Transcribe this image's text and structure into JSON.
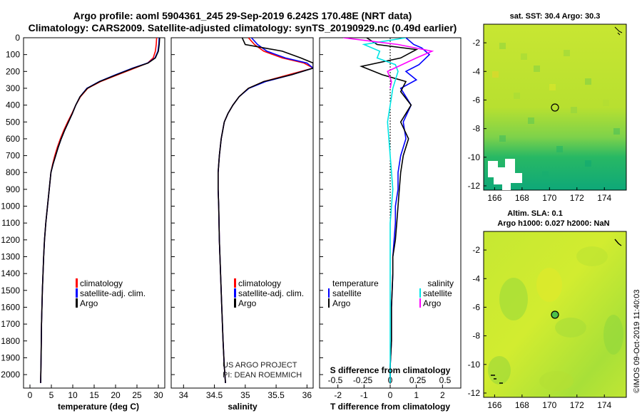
{
  "title_line1": "Argo profile: aoml 5904361_245 29-Sep-2019 6.242S 170.48E (NRT data)",
  "title_line2": "Climatology: CARS2009. Satellite-adjusted climatology: synTS_20190929.nc (0.49d earlier)",
  "colors": {
    "climatology": "#ff0000",
    "satellite": "#0000ff",
    "argo": "#000000",
    "sal_satellite": "#00e5e5",
    "sal_argo": "#ff00ff",
    "map_cross": "#000000"
  },
  "chart_data": [
    {
      "type": "line",
      "panel": "temperature",
      "xlabel": "temperature (deg C)",
      "ylabel": "",
      "xlim": [
        -1.5,
        31.5
      ],
      "ylim": [
        2080,
        0
      ],
      "xticks": [
        0,
        5,
        10,
        15,
        20,
        25,
        30
      ],
      "yticks": [
        0,
        100,
        200,
        300,
        400,
        500,
        600,
        700,
        800,
        900,
        1000,
        1100,
        1200,
        1300,
        1400,
        1500,
        1600,
        1700,
        1800,
        1900,
        2000
      ],
      "legend": [
        "climatology",
        "satellite-adj. clim.",
        "Argo"
      ],
      "series": [
        {
          "name": "climatology",
          "color": "climatology",
          "x": [
            29.6,
            29.5,
            29.3,
            28.8,
            27.5,
            24.5,
            20.5,
            16.5,
            13.5,
            11.8,
            10.7,
            9.8,
            8.8,
            7.9,
            7.1,
            6.4,
            5.8,
            5.3,
            4.9,
            4.5,
            4.1,
            3.7,
            3.4,
            3.2,
            2.9,
            2.7,
            2.6,
            2.5
          ],
          "y": [
            0,
            40,
            80,
            120,
            150,
            180,
            220,
            260,
            300,
            350,
            400,
            450,
            500,
            550,
            600,
            650,
            700,
            750,
            800,
            900,
            1000,
            1100,
            1200,
            1300,
            1500,
            1700,
            1900,
            2050
          ]
        },
        {
          "name": "satellite-adj. clim.",
          "color": "satellite",
          "x": [
            30.2,
            30.1,
            29.9,
            29.2,
            27.5,
            24.0,
            20.0,
            16.2,
            13.3,
            11.7,
            10.7,
            9.9,
            9.0,
            8.1,
            7.3,
            6.6,
            6.0,
            5.4,
            4.9,
            4.5,
            4.1,
            3.7,
            3.4,
            3.2,
            2.9,
            2.7,
            2.6,
            2.5
          ],
          "y": [
            0,
            40,
            80,
            120,
            150,
            180,
            220,
            260,
            300,
            350,
            400,
            450,
            500,
            550,
            600,
            650,
            700,
            750,
            800,
            900,
            1000,
            1100,
            1200,
            1300,
            1500,
            1700,
            1900,
            2050
          ]
        },
        {
          "name": "Argo",
          "color": "argo",
          "x": [
            30.3,
            30.2,
            30.0,
            29.3,
            27.6,
            24.2,
            20.2,
            16.3,
            13.4,
            11.7,
            10.7,
            9.9,
            9.0,
            8.1,
            7.3,
            6.6,
            6.0,
            5.4,
            4.9,
            4.5,
            4.1,
            3.7,
            3.4,
            3.2,
            2.9,
            2.7,
            2.6,
            2.5
          ],
          "y": [
            0,
            40,
            80,
            120,
            150,
            180,
            220,
            260,
            300,
            350,
            400,
            450,
            500,
            550,
            600,
            650,
            700,
            750,
            800,
            900,
            1000,
            1100,
            1200,
            1300,
            1500,
            1700,
            1900,
            2050
          ]
        }
      ]
    },
    {
      "type": "line",
      "panel": "salinity",
      "xlabel": "salinity",
      "xlim": [
        33.8,
        36.1
      ],
      "ylim": [
        2080,
        0
      ],
      "xticks": [
        34,
        34.5,
        35,
        35.5,
        36
      ],
      "legend": [
        "climatology",
        "satellite-adj. clim.",
        "Argo"
      ],
      "credits": [
        "US ARGO PROJECT",
        "PI: DEAN ROEMMICH"
      ],
      "series": [
        {
          "name": "climatology",
          "color": "climatology",
          "x": [
            35.05,
            35.15,
            35.3,
            35.6,
            35.95,
            36.1,
            35.7,
            35.3,
            35.05,
            34.9,
            34.8,
            34.72,
            34.66,
            34.61,
            34.58,
            34.56,
            34.56,
            34.57,
            34.58,
            34.6,
            34.62,
            34.64,
            34.66,
            34.68
          ],
          "y": [
            0,
            40,
            80,
            120,
            150,
            180,
            220,
            260,
            300,
            350,
            400,
            450,
            500,
            600,
            700,
            800,
            900,
            1000,
            1200,
            1400,
            1600,
            1800,
            1950,
            2050
          ]
        },
        {
          "name": "satellite-adj. clim.",
          "color": "satellite",
          "x": [
            35.1,
            35.2,
            35.35,
            35.65,
            36.0,
            36.1,
            35.75,
            35.33,
            35.06,
            34.9,
            34.8,
            34.72,
            34.66,
            34.61,
            34.58,
            34.56,
            34.56,
            34.57,
            34.58,
            34.6,
            34.62,
            34.64,
            34.66,
            34.68
          ],
          "y": [
            0,
            40,
            80,
            120,
            150,
            180,
            220,
            260,
            300,
            350,
            400,
            450,
            500,
            600,
            700,
            800,
            900,
            1000,
            1200,
            1400,
            1600,
            1800,
            1950,
            2050
          ]
        },
        {
          "name": "Argo",
          "color": "argo",
          "x": [
            34.95,
            35.0,
            35.6,
            35.9,
            36.1,
            36.1,
            35.75,
            35.3,
            35.05,
            34.9,
            34.8,
            34.72,
            34.66,
            34.61,
            34.58,
            34.56,
            34.56,
            34.57,
            34.58,
            34.6,
            34.62,
            34.64,
            34.66,
            34.68
          ],
          "y": [
            0,
            40,
            80,
            120,
            150,
            180,
            220,
            260,
            300,
            350,
            400,
            450,
            500,
            600,
            700,
            800,
            900,
            1000,
            1200,
            1400,
            1600,
            1800,
            1950,
            2050
          ]
        }
      ]
    },
    {
      "type": "line",
      "panel": "difference",
      "xlabel": "T difference from climatology",
      "xlabel2": "S difference from climatology",
      "xlim": [
        -2.7,
        2.7
      ],
      "ylim": [
        2080,
        0
      ],
      "xticks": [
        -2,
        -1,
        0,
        1,
        2
      ],
      "xticks2": [
        "-0.5",
        "-0.25",
        "0",
        "0.25",
        "0.5"
      ],
      "legend_t_title": "temperature",
      "legend_s_title": "salinity",
      "legend_t": [
        "satellite",
        "Argo"
      ],
      "legend_s": [
        "satellite",
        "Argo"
      ],
      "series": [
        {
          "name": "T satellite",
          "color": "satellite",
          "x": [
            0.6,
            0.9,
            1.2,
            1.5,
            1.1,
            0.6,
            1.0,
            0.4,
            0.8,
            0.5,
            0.6,
            0.4,
            0.3,
            0.3,
            0.2,
            0.2,
            0.15,
            0.1,
            0.1,
            0.05,
            0.05,
            0.0,
            0.0
          ],
          "y": [
            0,
            40,
            60,
            100,
            160,
            200,
            250,
            300,
            400,
            500,
            600,
            700,
            800,
            900,
            1000,
            1100,
            1200,
            1300,
            1400,
            1600,
            1800,
            1950,
            2050
          ]
        },
        {
          "name": "T Argo",
          "color": "argo",
          "x": [
            -0.9,
            -0.5,
            1.0,
            0.4,
            -1.1,
            -0.3,
            0.6,
            0.4,
            0.8,
            0.4,
            0.7,
            0.5,
            0.4,
            0.35,
            0.3,
            0.25,
            0.2,
            0.1,
            0.1,
            0.05,
            0.05,
            0.0,
            0.0
          ],
          "y": [
            0,
            40,
            70,
            120,
            170,
            220,
            260,
            320,
            400,
            500,
            600,
            700,
            800,
            900,
            1000,
            1100,
            1200,
            1300,
            1400,
            1600,
            1800,
            1950,
            2050
          ]
        },
        {
          "name": "S satellite",
          "color": "sal_satellite",
          "x": [
            0.6,
            -1.0,
            -0.4,
            -0.5,
            0.2,
            0.3,
            0.1,
            0.0,
            -0.1,
            0.0,
            0.1,
            0.0,
            0.0,
            0.0,
            0.0,
            0.0,
            0.0
          ],
          "y": [
            0,
            40,
            80,
            120,
            160,
            200,
            300,
            400,
            500,
            700,
            900,
            1100,
            1300,
            1500,
            1700,
            1900,
            2050
          ]
        },
        {
          "name": "S Argo",
          "color": "sal_argo",
          "x": [
            -1.8,
            0.3,
            1.6,
            1.0,
            -0.1,
            0.05,
            0.0
          ],
          "y": [
            0,
            40,
            80,
            120,
            200,
            260,
            300
          ]
        }
      ]
    },
    {
      "type": "heatmap",
      "panel": "map_sst",
      "title": "sat. SST: 30.4 Argo: 30.3",
      "xticks": [
        166,
        168,
        170,
        172,
        174
      ],
      "yticks": [
        -2,
        -4,
        -6,
        -8,
        -10,
        -12
      ],
      "xlim": [
        165.2,
        175.6
      ],
      "ylim": [
        -12.3,
        -0.7
      ],
      "marker": [
        170.48,
        -6.242
      ]
    },
    {
      "type": "heatmap",
      "panel": "map_sla",
      "title": "Altim. SLA: 0.1",
      "title2": "Argo h1000: 0.027 h2000: NaN",
      "xticks": [
        166,
        168,
        170,
        172,
        174
      ],
      "yticks": [
        -2,
        -4,
        -6,
        -8,
        -10,
        -12
      ],
      "xlim": [
        165.2,
        175.6
      ],
      "ylim": [
        -12.3,
        -0.7
      ],
      "marker": [
        170.48,
        -6.242
      ]
    }
  ],
  "footer": "©IMOS 09-Oct-2019 11:40:03"
}
